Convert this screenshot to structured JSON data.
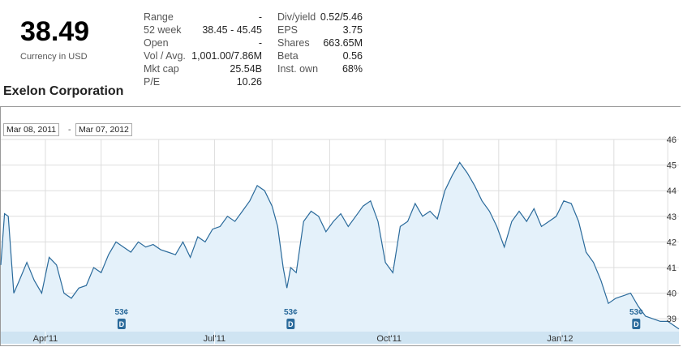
{
  "quote": {
    "price": "38.49",
    "currency": "Currency in USD",
    "company": "Exelon Corporation"
  },
  "stats_left": [
    {
      "label": "Range",
      "value": "-"
    },
    {
      "label": "52 week",
      "value": "38.45 - 45.45"
    },
    {
      "label": "Open",
      "value": "-"
    },
    {
      "label": "Vol / Avg.",
      "value": "1,001.00/7.86M"
    },
    {
      "label": "Mkt cap",
      "value": "25.54B"
    },
    {
      "label": "P/E",
      "value": "10.26"
    }
  ],
  "stats_right": [
    {
      "label": "Div/yield",
      "value": "0.52/5.46"
    },
    {
      "label": "EPS",
      "value": "3.75"
    },
    {
      "label": "Shares",
      "value": "663.65M"
    },
    {
      "label": "Beta",
      "value": "0.56"
    },
    {
      "label": "Inst. own",
      "value": "68%"
    }
  ],
  "date_range": {
    "from": "Mar 08, 2011",
    "separator": "-",
    "to": "Mar 07, 2012"
  },
  "chart_data": {
    "type": "area",
    "x_range": [
      "2011-03-08",
      "2012-03-07"
    ],
    "ylim": [
      38.5,
      46
    ],
    "y_ticks": [
      39,
      40,
      41,
      42,
      43,
      44,
      45,
      46
    ],
    "x_ticks": [
      {
        "date": "2011-04-01",
        "label": "Apr'11"
      },
      {
        "date": "2011-07-01",
        "label": "Jul'11"
      },
      {
        "date": "2011-10-03",
        "label": "Oct'11"
      },
      {
        "date": "2012-01-03",
        "label": "Jan'12"
      }
    ],
    "grid": true,
    "colors": {
      "line": "#2a6a9b",
      "fill": "#e4f1fa",
      "grid": "#dddddd",
      "axis_band": "#cfe4f2",
      "marker": "#2a6a9b"
    },
    "dividends": [
      {
        "date": "2011-05-12",
        "label": "53¢",
        "marker": "D"
      },
      {
        "date": "2011-08-11",
        "label": "53¢",
        "marker": "D"
      },
      {
        "date": "2012-02-13",
        "label": "53¢",
        "marker": "D"
      }
    ],
    "series": [
      {
        "x": [
          "2011-03-08",
          "2011-03-10",
          "2011-03-12",
          "2011-03-15",
          "2011-03-18",
          "2011-03-22",
          "2011-03-26",
          "2011-03-30",
          "2011-04-03",
          "2011-04-07",
          "2011-04-11",
          "2011-04-15",
          "2011-04-19",
          "2011-04-23",
          "2011-04-27",
          "2011-05-01",
          "2011-05-05",
          "2011-05-09",
          "2011-05-13",
          "2011-05-17",
          "2011-05-21",
          "2011-05-25",
          "2011-05-29",
          "2011-06-02",
          "2011-06-06",
          "2011-06-10",
          "2011-06-14",
          "2011-06-18",
          "2011-06-22",
          "2011-06-26",
          "2011-06-30",
          "2011-07-04",
          "2011-07-08",
          "2011-07-12",
          "2011-07-16",
          "2011-07-20",
          "2011-07-24",
          "2011-07-28",
          "2011-08-01",
          "2011-08-04",
          "2011-08-07",
          "2011-08-09",
          "2011-08-11",
          "2011-08-14",
          "2011-08-18",
          "2011-08-22",
          "2011-08-26",
          "2011-08-30",
          "2011-09-03",
          "2011-09-07",
          "2011-09-11",
          "2011-09-15",
          "2011-09-19",
          "2011-09-23",
          "2011-09-27",
          "2011-10-01",
          "2011-10-05",
          "2011-10-09",
          "2011-10-13",
          "2011-10-17",
          "2011-10-21",
          "2011-10-25",
          "2011-10-29",
          "2011-11-02",
          "2011-11-06",
          "2011-11-10",
          "2011-11-14",
          "2011-11-18",
          "2011-11-22",
          "2011-11-26",
          "2011-11-30",
          "2011-12-04",
          "2011-12-08",
          "2011-12-12",
          "2011-12-16",
          "2011-12-20",
          "2011-12-24",
          "2011-12-28",
          "2012-01-01",
          "2012-01-05",
          "2012-01-09",
          "2012-01-13",
          "2012-01-17",
          "2012-01-21",
          "2012-01-25",
          "2012-01-29",
          "2012-02-02",
          "2012-02-06",
          "2012-02-10",
          "2012-02-14",
          "2012-02-18",
          "2012-02-22",
          "2012-02-26",
          "2012-03-01",
          "2012-03-07"
        ],
        "values": [
          41.1,
          43.1,
          43.0,
          40.0,
          40.5,
          41.2,
          40.5,
          40.0,
          41.4,
          41.1,
          40.0,
          39.8,
          40.2,
          40.3,
          41.0,
          40.8,
          41.5,
          42.0,
          41.8,
          41.6,
          42.0,
          41.8,
          41.9,
          41.7,
          41.6,
          41.5,
          42.0,
          41.4,
          42.2,
          42.0,
          42.5,
          42.6,
          43.0,
          42.8,
          43.2,
          43.6,
          44.2,
          44.0,
          43.4,
          42.6,
          41.0,
          40.2,
          41.0,
          40.8,
          42.8,
          43.2,
          43.0,
          42.4,
          42.8,
          43.1,
          42.6,
          43.0,
          43.4,
          43.6,
          42.8,
          41.2,
          40.8,
          42.6,
          42.8,
          43.5,
          43.0,
          43.2,
          42.9,
          44.0,
          44.6,
          45.1,
          44.7,
          44.2,
          43.6,
          43.2,
          42.6,
          41.8,
          42.8,
          43.2,
          42.8,
          43.3,
          42.6,
          42.8,
          43.0,
          43.6,
          43.5,
          42.8,
          41.6,
          41.2,
          40.5,
          39.6,
          39.8,
          39.9,
          40.0,
          39.5,
          39.1,
          39.0,
          38.9,
          38.9,
          38.6
        ]
      }
    ]
  }
}
